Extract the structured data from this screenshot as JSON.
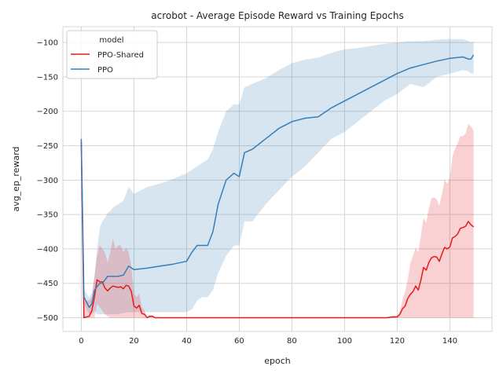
{
  "chart_data": {
    "type": "line",
    "title": "acrobot - Average Episode Reward vs Training Epochs",
    "xlabel": "epoch",
    "ylabel": "avg_ep_reward",
    "xlim": [
      -7,
      156
    ],
    "ylim": [
      -520,
      -77
    ],
    "xticks": [
      0,
      20,
      40,
      60,
      80,
      100,
      120,
      140
    ],
    "yticks": [
      -500,
      -450,
      -400,
      -350,
      -300,
      -250,
      -200,
      -150,
      -100
    ],
    "grid": true,
    "legend": {
      "title": "model",
      "placement": "top-left"
    },
    "series": [
      {
        "name": "PPO-Shared",
        "color": "#e41a1c",
        "x": [
          0,
          1,
          3,
          4,
          5,
          6,
          7,
          8,
          9,
          10,
          11,
          12,
          13,
          14,
          15,
          16,
          17,
          18,
          19,
          20,
          21,
          22,
          23,
          24,
          25,
          26,
          27,
          28,
          29,
          30,
          40,
          60,
          80,
          100,
          110,
          116,
          118,
          120,
          121,
          122,
          123,
          124,
          125,
          126,
          127,
          128,
          129,
          130,
          131,
          132,
          133,
          134,
          135,
          136,
          137,
          138,
          139,
          140,
          141,
          142,
          143,
          144,
          145,
          146,
          147,
          148,
          149
        ],
        "y": [
          -245,
          -500,
          -498,
          -490,
          -470,
          -445,
          -448,
          -448,
          -457,
          -461,
          -457,
          -454,
          -455,
          -456,
          -455,
          -458,
          -453,
          -454,
          -462,
          -483,
          -486,
          -482,
          -494,
          -495,
          -500,
          -498,
          -498,
          -500,
          -500,
          -500,
          -500,
          -500,
          -500,
          -500,
          -500,
          -500,
          -499,
          -499,
          -495,
          -487,
          -483,
          -472,
          -466,
          -462,
          -454,
          -460,
          -445,
          -427,
          -431,
          -420,
          -413,
          -411,
          -412,
          -418,
          -407,
          -398,
          -400,
          -397,
          -384,
          -382,
          -378,
          -370,
          -369,
          -367,
          -360,
          -365,
          -368
        ],
        "lower": [
          -300,
          -500,
          -500,
          -500,
          -500,
          -480,
          -485,
          -490,
          -495,
          -498,
          -500,
          -500,
          -500,
          -500,
          -500,
          -500,
          -500,
          -500,
          -500,
          -500,
          -500,
          -500,
          -500,
          -500,
          -500,
          -500,
          -500,
          -500,
          -500,
          -500,
          -500,
          -500,
          -500,
          -500,
          -500,
          -500,
          -500,
          -500,
          -500,
          -500,
          -500,
          -500,
          -500,
          -500,
          -500,
          -500,
          -500,
          -500,
          -500,
          -500,
          -500,
          -500,
          -500,
          -500,
          -500,
          -500,
          -500,
          -500,
          -500,
          -500,
          -500,
          -500,
          -500,
          -500,
          -500,
          -500,
          -500
        ],
        "upper": [
          -225,
          -475,
          -475,
          -470,
          -440,
          -410,
          -395,
          -400,
          -405,
          -420,
          -405,
          -385,
          -400,
          -395,
          -395,
          -405,
          -398,
          -405,
          -425,
          -465,
          -470,
          -465,
          -485,
          -490,
          -500,
          -496,
          -496,
          -500,
          -500,
          -500,
          -500,
          -500,
          -500,
          -500,
          -500,
          -500,
          -497,
          -497,
          -490,
          -474,
          -462,
          -445,
          -420,
          -410,
          -398,
          -405,
          -380,
          -355,
          -362,
          -342,
          -326,
          -325,
          -328,
          -337,
          -320,
          -300,
          -305,
          -296,
          -265,
          -254,
          -246,
          -236,
          -236,
          -232,
          -218,
          -222,
          -228
        ]
      },
      {
        "name": "PPO",
        "color": "#377eb8",
        "x": [
          0,
          1,
          3,
          4,
          5,
          6,
          7,
          8,
          9,
          10,
          11,
          12,
          14,
          16,
          18,
          20,
          25,
          30,
          35,
          40,
          42,
          44,
          46,
          48,
          50,
          52,
          55,
          58,
          60,
          62,
          65,
          70,
          75,
          80,
          85,
          90,
          95,
          100,
          105,
          110,
          115,
          120,
          125,
          130,
          135,
          140,
          145,
          147,
          148,
          149
        ],
        "y": [
          -240,
          -470,
          -485,
          -480,
          -460,
          -455,
          -450,
          -450,
          -445,
          -440,
          -440,
          -440,
          -440,
          -438,
          -425,
          -430,
          -428,
          -425,
          -422,
          -418,
          -405,
          -395,
          -395,
          -395,
          -375,
          -335,
          -300,
          -290,
          -295,
          -260,
          -255,
          -240,
          -225,
          -215,
          -210,
          -208,
          -195,
          -185,
          -175,
          -165,
          -155,
          -145,
          -137,
          -132,
          -127,
          -123,
          -121,
          -124,
          -124,
          -118
        ],
        "lower": [
          -250,
          -480,
          -495,
          -495,
          -490,
          -495,
          -495,
          -495,
          -495,
          -495,
          -495,
          -495,
          -495,
          -493,
          -492,
          -492,
          -492,
          -492,
          -492,
          -492,
          -488,
          -475,
          -470,
          -470,
          -460,
          -435,
          -410,
          -395,
          -395,
          -360,
          -360,
          -335,
          -315,
          -295,
          -280,
          -260,
          -240,
          -230,
          -215,
          -200,
          -185,
          -175,
          -160,
          -165,
          -150,
          -145,
          -140,
          -142,
          -145,
          -145
        ],
        "upper": [
          -235,
          -460,
          -470,
          -465,
          -440,
          -400,
          -370,
          -360,
          -355,
          -348,
          -345,
          -340,
          -335,
          -330,
          -310,
          -320,
          -310,
          -305,
          -298,
          -290,
          -285,
          -280,
          -275,
          -270,
          -255,
          -230,
          -200,
          -190,
          -190,
          -165,
          -160,
          -152,
          -140,
          -130,
          -125,
          -122,
          -115,
          -110,
          -108,
          -105,
          -102,
          -100,
          -98,
          -98,
          -96,
          -95,
          -95,
          -98,
          -100,
          -98
        ]
      }
    ]
  }
}
